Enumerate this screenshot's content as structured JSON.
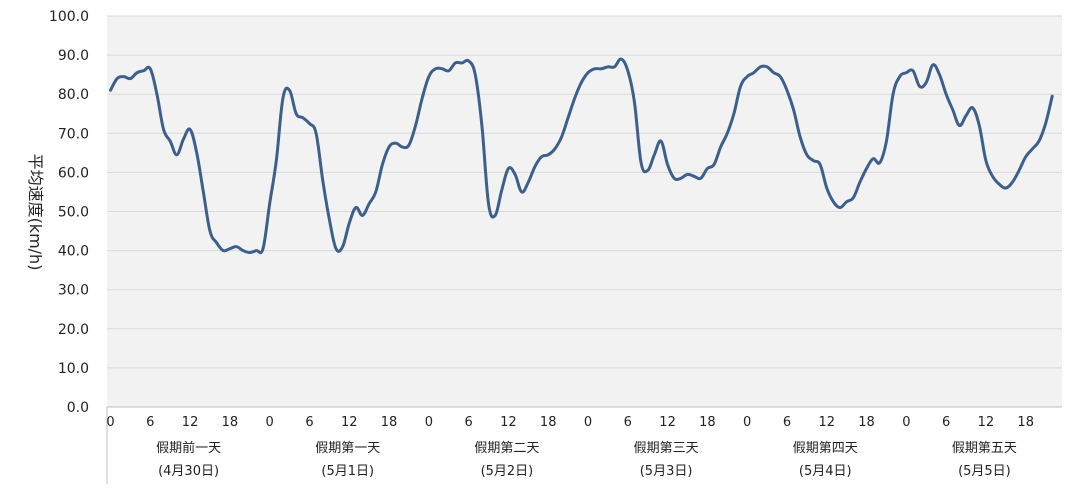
{
  "chart_data": {
    "type": "line",
    "ylabel": "平均速度(km/h)",
    "ylim": [
      0,
      100
    ],
    "y_ticks": [
      "0.0",
      "10.0",
      "20.0",
      "30.0",
      "40.0",
      "50.0",
      "60.0",
      "70.0",
      "80.0",
      "90.0",
      "100.0"
    ],
    "grid": true,
    "line_color": "#3d5f8c",
    "plot_background": "#f2f2f2",
    "hour_ticks": [
      "0",
      "6",
      "12",
      "18"
    ],
    "days": [
      {
        "name": "假期前一天",
        "date": "(4月30日)"
      },
      {
        "name": "假期第一天",
        "date": "(5月1日)"
      },
      {
        "name": "假期第二天",
        "date": "(5月2日)"
      },
      {
        "name": "假期第三天",
        "date": "(5月3日)"
      },
      {
        "name": "假期第四天",
        "date": "(5月4日)"
      },
      {
        "name": "假期第五天",
        "date": "(5月5日)"
      }
    ],
    "series": [
      {
        "x_unit": "hour",
        "values": [
          [
            0,
            81
          ],
          [
            1,
            84
          ],
          [
            2,
            84.5
          ],
          [
            3,
            84
          ],
          [
            4,
            85.5
          ],
          [
            5,
            86
          ],
          [
            6,
            86.5
          ],
          [
            7,
            80
          ],
          [
            8,
            71
          ],
          [
            9,
            68
          ],
          [
            10,
            64.5
          ],
          [
            11,
            68.5
          ],
          [
            12,
            71
          ],
          [
            13,
            65
          ],
          [
            14,
            55
          ],
          [
            15,
            45
          ],
          [
            16,
            42
          ],
          [
            17,
            40
          ],
          [
            18,
            40.5
          ],
          [
            19,
            41
          ],
          [
            20,
            40
          ],
          [
            21,
            39.5
          ],
          [
            22,
            40
          ],
          [
            23,
            40.5
          ],
          [
            24,
            52
          ],
          [
            25,
            63
          ],
          [
            26,
            79
          ],
          [
            27,
            81
          ],
          [
            28,
            75
          ],
          [
            29,
            74
          ],
          [
            30,
            72.5
          ],
          [
            31,
            70
          ],
          [
            32,
            58
          ],
          [
            33,
            48
          ],
          [
            34,
            40.5
          ],
          [
            35,
            41
          ],
          [
            36,
            47
          ],
          [
            37,
            51
          ],
          [
            38,
            49
          ],
          [
            39,
            52
          ],
          [
            40,
            55
          ],
          [
            41,
            62
          ],
          [
            42,
            66.5
          ],
          [
            43,
            67.5
          ],
          [
            44,
            66.5
          ],
          [
            45,
            67
          ],
          [
            46,
            72
          ],
          [
            47,
            79
          ],
          [
            48,
            84.5
          ],
          [
            49,
            86.5
          ],
          [
            50,
            86.5
          ],
          [
            51,
            86
          ],
          [
            52,
            88
          ],
          [
            53,
            88
          ],
          [
            54,
            88.5
          ],
          [
            55,
            85
          ],
          [
            56,
            72
          ],
          [
            57,
            52
          ],
          [
            58,
            49
          ],
          [
            59,
            55.5
          ],
          [
            60,
            61
          ],
          [
            61,
            59.5
          ],
          [
            62,
            55
          ],
          [
            63,
            57.5
          ],
          [
            64,
            61.5
          ],
          [
            65,
            64
          ],
          [
            66,
            64.5
          ],
          [
            67,
            66
          ],
          [
            68,
            69
          ],
          [
            69,
            74
          ],
          [
            70,
            79
          ],
          [
            71,
            83
          ],
          [
            72,
            85.5
          ],
          [
            73,
            86.5
          ],
          [
            74,
            86.5
          ],
          [
            75,
            87
          ],
          [
            76,
            87
          ],
          [
            77,
            89
          ],
          [
            78,
            86
          ],
          [
            79,
            78
          ],
          [
            80,
            62.5
          ],
          [
            81,
            60.5
          ],
          [
            82,
            64.5
          ],
          [
            83,
            68
          ],
          [
            84,
            62
          ],
          [
            85,
            58.5
          ],
          [
            86,
            58.5
          ],
          [
            87,
            59.5
          ],
          [
            88,
            59
          ],
          [
            89,
            58.5
          ],
          [
            90,
            61
          ],
          [
            91,
            62
          ],
          [
            92,
            66.5
          ],
          [
            93,
            70
          ],
          [
            94,
            75
          ],
          [
            95,
            82
          ],
          [
            96,
            84.5
          ],
          [
            97,
            85.5
          ],
          [
            98,
            87
          ],
          [
            99,
            87
          ],
          [
            100,
            85.5
          ],
          [
            101,
            84.5
          ],
          [
            102,
            81
          ],
          [
            103,
            76
          ],
          [
            104,
            69
          ],
          [
            105,
            64.5
          ],
          [
            106,
            63
          ],
          [
            107,
            62
          ],
          [
            108,
            56
          ],
          [
            109,
            52.5
          ],
          [
            110,
            51
          ],
          [
            111,
            52.5
          ],
          [
            112,
            53.5
          ],
          [
            113,
            57.5
          ],
          [
            114,
            61
          ],
          [
            115,
            63.5
          ],
          [
            116,
            62.5
          ],
          [
            117,
            68
          ],
          [
            118,
            80
          ],
          [
            119,
            84.5
          ],
          [
            120,
            85.5
          ],
          [
            121,
            86
          ],
          [
            122,
            82
          ],
          [
            123,
            83
          ],
          [
            124,
            87.5
          ],
          [
            125,
            85
          ],
          [
            126,
            80
          ],
          [
            127,
            76
          ],
          [
            128,
            72
          ],
          [
            129,
            74.5
          ],
          [
            130,
            76.5
          ],
          [
            131,
            72
          ],
          [
            132,
            63
          ],
          [
            133,
            59
          ],
          [
            134,
            57
          ],
          [
            135,
            56
          ],
          [
            136,
            57.5
          ],
          [
            137,
            60.5
          ],
          [
            138,
            64
          ],
          [
            139,
            66
          ],
          [
            140,
            68
          ],
          [
            141,
            72.5
          ],
          [
            142,
            79.5
          ]
        ]
      }
    ]
  }
}
